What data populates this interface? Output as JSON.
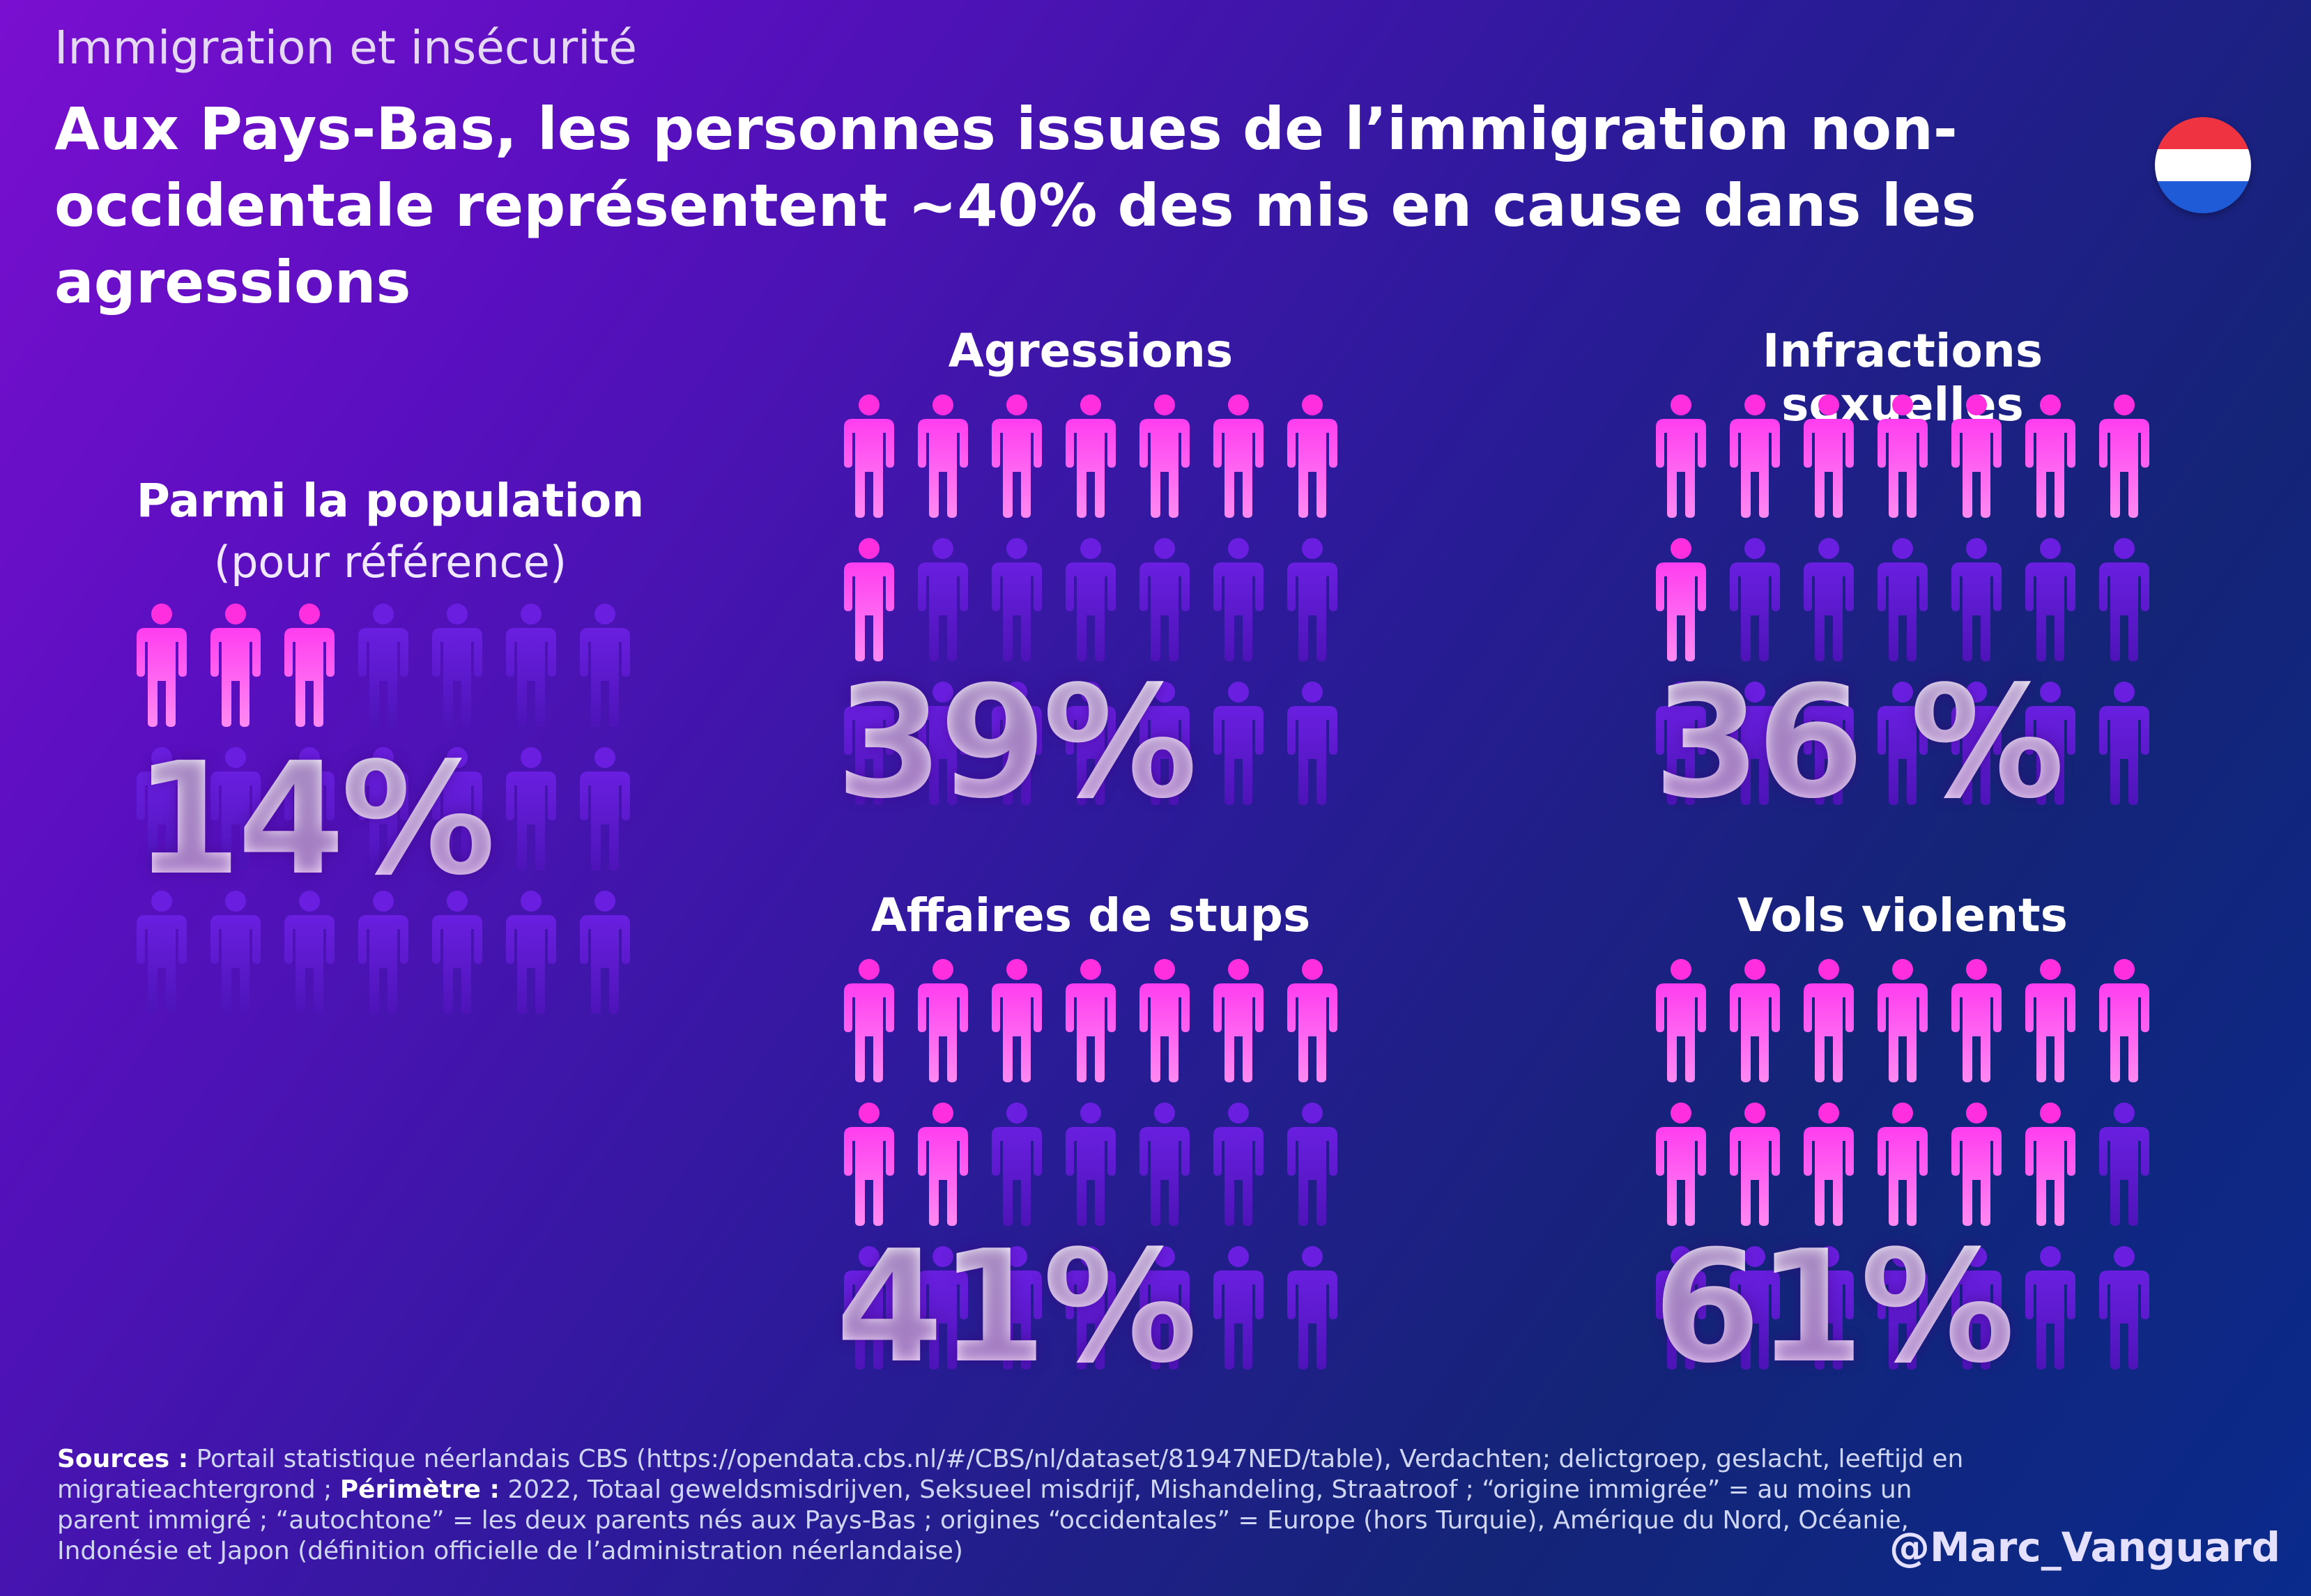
{
  "kicker": "Immigration et insécurité",
  "headline": "Aux Pays-Bas, les personnes issues de l’immigration non-occidentale représentent ~40% des mis en cause dans les agressions",
  "colors": {
    "highlight": "#ff2fe0",
    "base": "#5a18c8",
    "text": "#ffffff"
  },
  "flag": {
    "colors": [
      "#ef3340",
      "#ffffff",
      "#1f5bd6"
    ]
  },
  "chart_data": {
    "type": "pictogram",
    "unit": "1 figurine ≈ 1/21",
    "per_grid": 21,
    "panels": [
      {
        "id": "population",
        "title": "Parmi la population",
        "subtitle": "(pour référence)",
        "value": 14,
        "label": "14%",
        "highlighted": 3
      },
      {
        "id": "agressions",
        "title": "Agressions",
        "value": 39,
        "label": "39%",
        "highlighted": 8
      },
      {
        "id": "sexuelles",
        "title": "Infractions sexuelles",
        "value": 36,
        "label": "36 %",
        "highlighted": 8
      },
      {
        "id": "stups",
        "title": "Affaires de stups",
        "value": 41,
        "label": "41%",
        "highlighted": 9
      },
      {
        "id": "vols",
        "title": "Vols violents",
        "value": 61,
        "label": "61%",
        "highlighted": 13
      }
    ]
  },
  "sources": {
    "label1": "Sources :",
    "text1": " Portail statistique néerlandais CBS (https://opendata.cbs.nl/#/CBS/nl/dataset/81947NED/table), Verdachten; delictgroep, geslacht, leeftijd en migratieachtergrond ; ",
    "label2": "Périmètre :",
    "text2": " 2022, Totaal geweldsmisdrijven, Seksueel misdrijf, Mishandeling, Straatroof ; “origine immigrée” = au moins un parent immigré ; “autochtone” = les deux parents nés aux Pays-Bas ; origines “occidentales” = Europe (hors Turquie), Amérique du Nord, Océanie, Indonésie et Japon (définition officielle de l’administration néerlandaise)"
  },
  "handle": "@Marc_Vanguard"
}
